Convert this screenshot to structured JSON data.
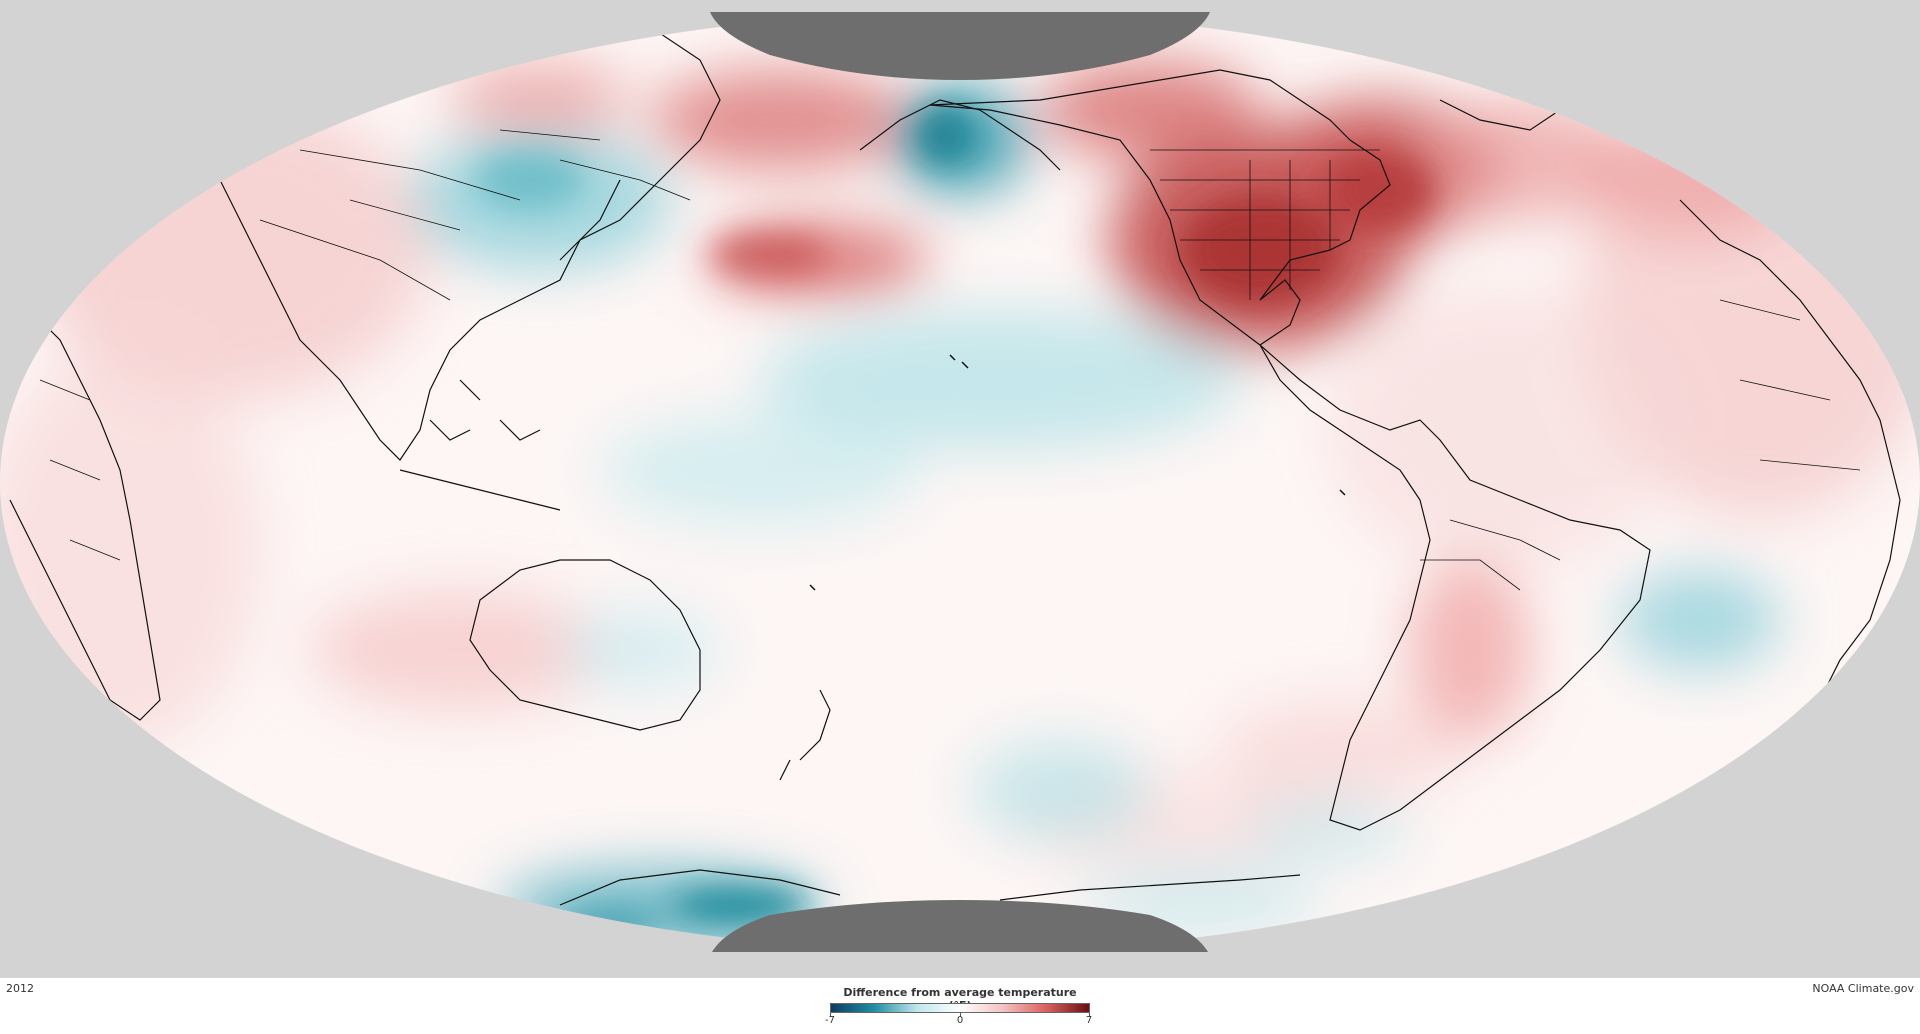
{
  "map": {
    "title": "Difference from average temperature (°F)",
    "year": "2012",
    "credit": "NOAA Climate.gov",
    "projection": "global equal-area ellipse, Pacific-centered",
    "polar_caps": "gray (no data)",
    "background_color": "#d3d3d3",
    "polar_cap_color": "#6e6e6e",
    "coastline_color": "#111111"
  },
  "legend": {
    "title": "Difference from average temperature (°F)",
    "min_label": "-7",
    "mid_label": "0",
    "max_label": "7",
    "color_stops": [
      "#0d3b66",
      "#1f8fa0",
      "#bfe6ec",
      "#ffffff",
      "#f4c2c2",
      "#d9625f",
      "#6b0f14"
    ]
  },
  "anomalies": [
    {
      "region": "Eastern North America / United States",
      "sign": "warm",
      "color": "#b73c3c"
    },
    {
      "region": "Hudson Bay / Eastern Canada",
      "sign": "warm",
      "color": "#c85050"
    },
    {
      "region": "Alaska",
      "sign": "cold",
      "color": "#1a7c8c"
    },
    {
      "region": "Central Siberia",
      "sign": "cold",
      "color": "#58b3c0"
    },
    {
      "region": "North Pacific",
      "sign": "warm",
      "color": "#d77070"
    },
    {
      "region": "Eastern Siberia",
      "sign": "warm",
      "color": "#e08c8c"
    },
    {
      "region": "Central Pacific",
      "sign": "cold",
      "color": "#a7dce3"
    },
    {
      "region": "South Atlantic",
      "sign": "cold",
      "color": "#8fd0da"
    },
    {
      "region": "Antarctic coast",
      "sign": "cold",
      "color": "#1a8596"
    },
    {
      "region": "Southern South America",
      "sign": "warm",
      "color": "#ee9a9a"
    },
    {
      "region": "Europe / Northwest Africa",
      "sign": "warm",
      "color": "#f0b0b0"
    },
    {
      "region": "Western Australia / Indian Ocean",
      "sign": "warm",
      "color": "#f0b3b3"
    }
  ]
}
